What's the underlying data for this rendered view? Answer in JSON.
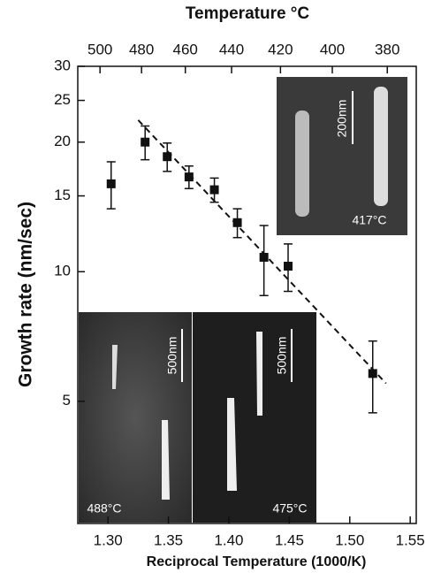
{
  "chart_data": {
    "type": "scatter",
    "title": "Temperature °C",
    "x_label": "Reciprocal Temperature (1000/K)",
    "y_label": "Growth rate (nm/sec)",
    "xlim": [
      1.275,
      1.555
    ],
    "xticks": [
      {
        "value": 1.3,
        "label": "1.30"
      },
      {
        "value": 1.35,
        "label": "1.35"
      },
      {
        "value": 1.4,
        "label": "1.40"
      },
      {
        "value": 1.45,
        "label": "1.45"
      },
      {
        "value": 1.5,
        "label": "1.50"
      },
      {
        "value": 1.55,
        "label": "1.55"
      }
    ],
    "x2ticks": [
      500,
      480,
      460,
      440,
      420,
      400,
      380
    ],
    "ylim": [
      2.6,
      30
    ],
    "yticks": [
      5,
      10,
      15,
      20,
      25,
      30
    ],
    "log_y": true,
    "color": "#111111",
    "points": {
      "x": [
        1.3026,
        1.3307,
        1.349,
        1.367,
        1.388,
        1.407,
        1.429,
        1.449,
        1.519
      ],
      "values": [
        16,
        20,
        18.5,
        16.6,
        15.5,
        13,
        10.8,
        10.3,
        5.8
      ],
      "errors": [
        2,
        1.8,
        1.4,
        1,
        1,
        1,
        2,
        1.3,
        1.1
      ]
    },
    "fit": {
      "x": [
        1.325,
        1.53
      ],
      "values": [
        22.5,
        5.5
      ]
    },
    "annotations": {
      "top_scale": "200nm",
      "top_temp": "417°C",
      "left_scale": "500nm",
      "left_temp": "488°C",
      "right_scale": "500nm",
      "right_temp": "475°C"
    }
  }
}
